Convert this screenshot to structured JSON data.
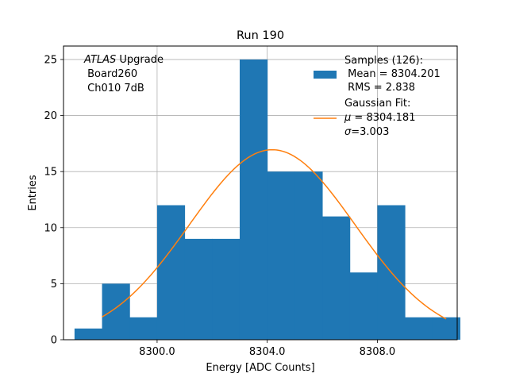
{
  "chart_data": {
    "type": "bar",
    "title": "Run 190",
    "xlabel": "Energy [ADC Counts]",
    "ylabel": "Entries",
    "xlim": [
      8296.6,
      8310.9
    ],
    "ylim": [
      0,
      26.2
    ],
    "grid": true,
    "xticks": [
      8300,
      8304,
      8308
    ],
    "xtick_labels": [
      "8300.0",
      "8304.0",
      "8308.0"
    ],
    "yticks": [
      0,
      5,
      10,
      15,
      20,
      25
    ],
    "ytick_labels": [
      "0",
      "5",
      "10",
      "15",
      "20",
      "25"
    ],
    "bin_width": 1.0,
    "bins": [
      {
        "x0": 8297.0,
        "count": 1
      },
      {
        "x0": 8298.0,
        "count": 5
      },
      {
        "x0": 8299.0,
        "count": 2
      },
      {
        "x0": 8300.0,
        "count": 12
      },
      {
        "x0": 8301.0,
        "count": 9
      },
      {
        "x0": 8302.0,
        "count": 9
      },
      {
        "x0": 8303.0,
        "count": 25
      },
      {
        "x0": 8304.0,
        "count": 15
      },
      {
        "x0": 8305.0,
        "count": 15
      },
      {
        "x0": 8306.0,
        "count": 11
      },
      {
        "x0": 8307.0,
        "count": 6
      },
      {
        "x0": 8308.0,
        "count": 12
      },
      {
        "x0": 8309.0,
        "count": 2
      },
      {
        "x0": 8310.0,
        "count": 2
      }
    ],
    "fit": {
      "mu": 8304.181,
      "sigma": 3.003,
      "amplitude": 16.95,
      "x_range": [
        8298.0,
        8310.5
      ]
    },
    "colors": {
      "hist": "#1f77b4",
      "fit": "#ff7f0e",
      "grid": "#b0b0b0"
    },
    "annotation": {
      "line1_italic": "ATLAS",
      "line1_rest": " Upgrade",
      "line2": " Board260",
      "line3": " Ch010 7dB"
    },
    "legend": {
      "position": "top-right",
      "hist": {
        "line1": "Samples (126):",
        "line2": " Mean = 8304.201",
        "line3": " RMS = 2.838"
      },
      "fit": {
        "line1": "Gaussian Fit:",
        "line2_symbol": "μ",
        "line2_rest": " = 8304.181",
        "line3_symbol": "σ",
        "line3_rest": "=3.003"
      }
    }
  }
}
